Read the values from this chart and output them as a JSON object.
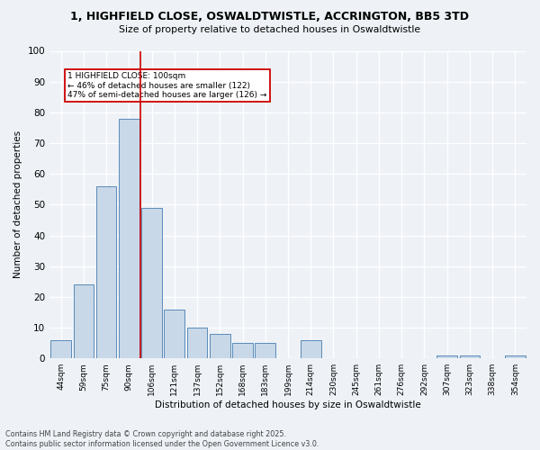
{
  "title1": "1, HIGHFIELD CLOSE, OSWALDTWISTLE, ACCRINGTON, BB5 3TD",
  "title2": "Size of property relative to detached houses in Oswaldtwistle",
  "xlabel": "Distribution of detached houses by size in Oswaldtwistle",
  "ylabel": "Number of detached properties",
  "categories": [
    "44sqm",
    "59sqm",
    "75sqm",
    "90sqm",
    "106sqm",
    "121sqm",
    "137sqm",
    "152sqm",
    "168sqm",
    "183sqm",
    "199sqm",
    "214sqm",
    "230sqm",
    "245sqm",
    "261sqm",
    "276sqm",
    "292sqm",
    "307sqm",
    "323sqm",
    "338sqm",
    "354sqm"
  ],
  "values": [
    6,
    24,
    56,
    78,
    49,
    16,
    10,
    8,
    5,
    5,
    0,
    6,
    0,
    0,
    0,
    0,
    0,
    1,
    1,
    0,
    1
  ],
  "bar_color": "#c8d8e8",
  "bar_edge_color": "#5a8ab8",
  "annotation_text": "1 HIGHFIELD CLOSE: 100sqm\n← 46% of detached houses are smaller (122)\n47% of semi-detached houses are larger (126) →",
  "annotation_box_color": "#ffffff",
  "annotation_box_edge_color": "#cc0000",
  "red_line_color": "#cc0000",
  "footnote1": "Contains HM Land Registry data © Crown copyright and database right 2025.",
  "footnote2": "Contains public sector information licensed under the Open Government Licence v3.0.",
  "background_color": "#eef2f7",
  "ylim": [
    0,
    100
  ],
  "yticks": [
    0,
    10,
    20,
    30,
    40,
    50,
    60,
    70,
    80,
    90,
    100
  ]
}
